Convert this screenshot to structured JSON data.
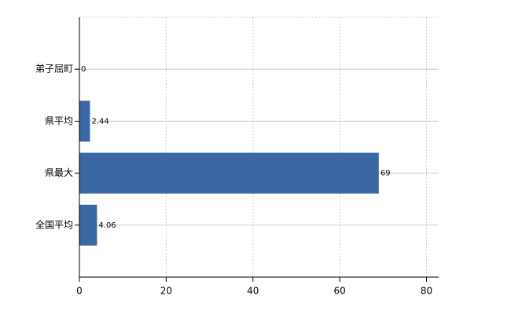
{
  "chart_data": {
    "type": "bar",
    "orientation": "horizontal",
    "categories": [
      "弟子屈町",
      "県平均",
      "県最大",
      "全国平均"
    ],
    "values": [
      0,
      2.44,
      69,
      4.06
    ],
    "color": "#3a68a5",
    "xlim": [
      0,
      82.8
    ],
    "xticks": [
      0,
      20,
      40,
      60,
      80
    ],
    "grid": true
  }
}
